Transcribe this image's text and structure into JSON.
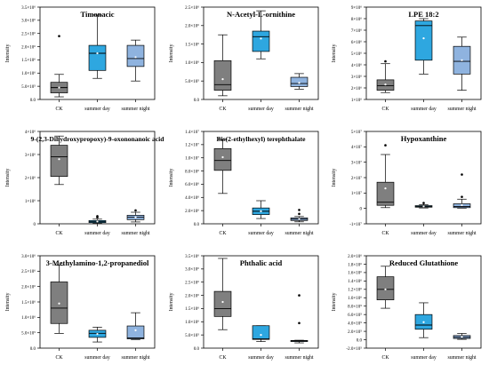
{
  "figure": {
    "ylabel": "Intensity",
    "box_colors": {
      "CK": "#7f7f7f",
      "summer day": "#2ea7e0",
      "summer night": "#8fb3df"
    },
    "mean_marker_color": "#ffffff",
    "outlier_color": "#000000"
  },
  "chart_data": [
    {
      "type": "box",
      "title": "Timonacic",
      "ylabel": "Intensity",
      "categories": [
        "CK",
        "summer day",
        "summer night"
      ],
      "ylim": [
        0,
        3500000
      ],
      "ticks": [
        0,
        500000,
        1000000,
        1500000,
        2000000,
        2500000,
        3000000,
        3500000
      ],
      "tick_labels": [
        "0.0",
        "5.0×10⁵",
        "1.0×10⁶",
        "1.5×10⁶",
        "2.0×10⁶",
        "2.5×10⁶",
        "3.0×10⁶",
        "3.5×10⁶"
      ],
      "boxes": [
        {
          "category": "CK",
          "min": 100000,
          "q1": 250000,
          "median": 450000,
          "q3": 650000,
          "max": 950000,
          "mean": 450000,
          "outliers": [
            2400000
          ]
        },
        {
          "category": "summer day",
          "min": 800000,
          "q1": 1100000,
          "median": 1750000,
          "q3": 2050000,
          "max": 3200000,
          "mean": 1750000,
          "outliers": []
        },
        {
          "category": "summer night",
          "min": 700000,
          "q1": 1250000,
          "median": 1550000,
          "q3": 2050000,
          "max": 2250000,
          "mean": 1600000,
          "outliers": []
        }
      ]
    },
    {
      "type": "box",
      "title": "N-Acetyl-L-ornithine",
      "ylabel": "Intensity",
      "categories": [
        "CK",
        "summer day",
        "summer night"
      ],
      "ylim": [
        0,
        2500000
      ],
      "ticks": [
        0,
        500000,
        1000000,
        1500000,
        2000000,
        2500000
      ],
      "tick_labels": [
        "0.0",
        "5.0×10⁵",
        "1.0×10⁶",
        "1.5×10⁶",
        "2.0×10⁶",
        "2.5×10⁶"
      ],
      "boxes": [
        {
          "category": "CK",
          "min": 100000,
          "q1": 250000,
          "median": 400000,
          "q3": 1050000,
          "max": 1750000,
          "mean": 550000,
          "outliers": []
        },
        {
          "category": "summer day",
          "min": 1100000,
          "q1": 1300000,
          "median": 1700000,
          "q3": 1850000,
          "max": 2400000,
          "mean": 1650000,
          "outliers": []
        },
        {
          "category": "summer night",
          "min": 280000,
          "q1": 350000,
          "median": 430000,
          "q3": 600000,
          "max": 700000,
          "mean": 450000,
          "outliers": []
        }
      ]
    },
    {
      "type": "box",
      "title": "LPE 18:2",
      "ylabel": "Intensity",
      "categories": [
        "CK",
        "summer day",
        "summer night"
      ],
      "ylim": [
        1000000,
        9000000
      ],
      "ticks": [
        1000000,
        2000000,
        3000000,
        4000000,
        5000000,
        6000000,
        7000000,
        8000000,
        9000000
      ],
      "tick_labels": [
        "1×10⁶",
        "2×10⁶",
        "3×10⁶",
        "4×10⁶",
        "5×10⁶",
        "6×10⁶",
        "7×10⁶",
        "8×10⁶",
        "9×10⁶"
      ],
      "boxes": [
        {
          "category": "CK",
          "min": 1600000,
          "q1": 1800000,
          "median": 2200000,
          "q3": 2700000,
          "max": 4100000,
          "mean": 2300000,
          "outliers": [
            4300000
          ]
        },
        {
          "category": "summer day",
          "min": 3200000,
          "q1": 4400000,
          "median": 7400000,
          "q3": 7800000,
          "max": 8000000,
          "mean": 6300000,
          "outliers": []
        },
        {
          "category": "summer night",
          "min": 1800000,
          "q1": 3200000,
          "median": 4300000,
          "q3": 5600000,
          "max": 6400000,
          "mean": 4400000,
          "outliers": []
        }
      ]
    },
    {
      "type": "box",
      "title": "9-(2,3-Dihydroxypropoxy)-9-oxononanoic acid",
      "ylabel": "Intensity",
      "categories": [
        "CK",
        "summer day",
        "summer night"
      ],
      "ylim": [
        0,
        4000000
      ],
      "ticks": [
        0,
        1000000,
        2000000,
        3000000,
        4000000
      ],
      "tick_labels": [
        "0",
        "1×10⁶",
        "2×10⁶",
        "3×10⁶",
        "4×10⁶"
      ],
      "boxes": [
        {
          "category": "CK",
          "min": 1700000,
          "q1": 2050000,
          "median": 2900000,
          "q3": 3400000,
          "max": 3800000,
          "mean": 2800000,
          "outliers": []
        },
        {
          "category": "summer day",
          "min": 20000,
          "q1": 50000,
          "median": 90000,
          "q3": 140000,
          "max": 200000,
          "mean": 100000,
          "outliers": [
            280000,
            330000
          ]
        },
        {
          "category": "summer night",
          "min": 80000,
          "q1": 180000,
          "median": 280000,
          "q3": 370000,
          "max": 500000,
          "mean": 280000,
          "outliers": [
            580000
          ]
        }
      ]
    },
    {
      "type": "box",
      "title": "Bis(2-ethylhexyl) terephthalate",
      "ylabel": "Intensity",
      "categories": [
        "CK",
        "summer day",
        "summer night"
      ],
      "ylim": [
        0,
        14000000
      ],
      "ticks": [
        0,
        2000000,
        4000000,
        6000000,
        8000000,
        10000000,
        12000000,
        14000000
      ],
      "tick_labels": [
        "0.0",
        "2.0×10⁶",
        "4.0×10⁶",
        "6.0×10⁶",
        "8.0×10⁶",
        "1.0×10⁷",
        "1.2×10⁷",
        "1.4×10⁷"
      ],
      "boxes": [
        {
          "category": "CK",
          "min": 4600000,
          "q1": 8100000,
          "median": 9600000,
          "q3": 11400000,
          "max": 12800000,
          "mean": 10100000,
          "outliers": []
        },
        {
          "category": "summer day",
          "min": 800000,
          "q1": 1400000,
          "median": 1900000,
          "q3": 2400000,
          "max": 3500000,
          "mean": 1900000,
          "outliers": []
        },
        {
          "category": "summer night",
          "min": 300000,
          "q1": 500000,
          "median": 700000,
          "q3": 900000,
          "max": 1100000,
          "mean": 750000,
          "outliers": [
            1500000,
            2100000
          ]
        }
      ]
    },
    {
      "type": "box",
      "title": "Hypoxanthine",
      "ylabel": "Intensity",
      "categories": [
        "CK",
        "summer day",
        "summer night"
      ],
      "ylim": [
        -10000000,
        50000000
      ],
      "ticks": [
        -10000000,
        0,
        10000000,
        20000000,
        30000000,
        40000000,
        50000000
      ],
      "tick_labels": [
        "-1×10⁷",
        "0",
        "1×10⁷",
        "2×10⁷",
        "3×10⁷",
        "4×10⁷",
        "5×10⁷"
      ],
      "boxes": [
        {
          "category": "CK",
          "min": 500000,
          "q1": 2000000,
          "median": 4000000,
          "q3": 17000000,
          "max": 35000000,
          "mean": 13000000,
          "outliers": [
            41000000
          ]
        },
        {
          "category": "summer day",
          "min": 300000,
          "q1": 800000,
          "median": 1200000,
          "q3": 1800000,
          "max": 2500000,
          "mean": 1300000,
          "outliers": [
            3500000
          ]
        },
        {
          "category": "summer night",
          "min": 200000,
          "q1": 500000,
          "median": 1200000,
          "q3": 3000000,
          "max": 6000000,
          "mean": 2200000,
          "outliers": [
            7500000,
            22000000
          ]
        }
      ]
    },
    {
      "type": "box",
      "title": "3-Methylamino-1,2-propanediol",
      "ylabel": "Intensity",
      "categories": [
        "CK",
        "summer day",
        "summer night"
      ],
      "ylim": [
        0,
        3000000
      ],
      "ticks": [
        0,
        500000,
        1000000,
        1500000,
        2000000,
        2500000,
        3000000
      ],
      "tick_labels": [
        "0.0",
        "5.0×10⁵",
        "1.0×10⁶",
        "1.5×10⁶",
        "2.0×10⁶",
        "2.5×10⁶",
        "3.0×10⁶"
      ],
      "boxes": [
        {
          "category": "CK",
          "min": 480000,
          "q1": 800000,
          "median": 1300000,
          "q3": 2150000,
          "max": 2700000,
          "mean": 1450000,
          "outliers": []
        },
        {
          "category": "summer day",
          "min": 200000,
          "q1": 350000,
          "median": 480000,
          "q3": 580000,
          "max": 680000,
          "mean": 460000,
          "outliers": []
        },
        {
          "category": "summer night",
          "min": 280000,
          "q1": 300000,
          "median": 330000,
          "q3": 720000,
          "max": 1150000,
          "mean": 580000,
          "outliers": []
        }
      ]
    },
    {
      "type": "box",
      "title": "Phthalic acid",
      "ylabel": "Intensity",
      "categories": [
        "CK",
        "summer day",
        "summer night"
      ],
      "ylim": [
        0,
        3500000
      ],
      "ticks": [
        0,
        500000,
        1000000,
        1500000,
        2000000,
        2500000,
        3000000,
        3500000
      ],
      "tick_labels": [
        "0.0",
        "5.0×10⁵",
        "1.0×10⁶",
        "1.5×10⁶",
        "2.0×10⁶",
        "2.5×10⁶",
        "3.0×10⁶",
        "3.5×10⁶"
      ],
      "boxes": [
        {
          "category": "CK",
          "min": 700000,
          "q1": 1200000,
          "median": 1500000,
          "q3": 2150000,
          "max": 3400000,
          "mean": 1750000,
          "outliers": []
        },
        {
          "category": "summer day",
          "min": 250000,
          "q1": 330000,
          "median": 350000,
          "q3": 850000,
          "max": 850000,
          "mean": 500000,
          "outliers": []
        },
        {
          "category": "summer night",
          "min": 200000,
          "q1": 250000,
          "median": 270000,
          "q3": 290000,
          "max": 300000,
          "mean": 550000,
          "outliers": [
            950000,
            2000000
          ]
        }
      ]
    },
    {
      "type": "box",
      "title": "Reduced Glutathione",
      "ylabel": "Intensity",
      "categories": [
        "CK",
        "summer day",
        "summer night"
      ],
      "ylim": [
        -200000,
        2000000
      ],
      "ticks": [
        -200000,
        0,
        200000,
        400000,
        600000,
        800000,
        1000000,
        1200000,
        1400000,
        1600000,
        1800000,
        2000000
      ],
      "tick_labels": [
        "-2.0×10⁵",
        "0.0",
        "2.0×10⁵",
        "4.0×10⁵",
        "6.0×10⁵",
        "8.0×10⁵",
        "1.0×10⁶",
        "1.2×10⁶",
        "1.4×10⁶",
        "1.6×10⁶",
        "1.8×10⁶",
        "2.0×10⁶"
      ],
      "boxes": [
        {
          "category": "CK",
          "min": 750000,
          "q1": 950000,
          "median": 1200000,
          "q3": 1500000,
          "max": 1750000,
          "mean": 1200000,
          "outliers": []
        },
        {
          "category": "summer day",
          "min": 50000,
          "q1": 250000,
          "median": 350000,
          "q3": 600000,
          "max": 880000,
          "mean": 420000,
          "outliers": []
        },
        {
          "category": "summer night",
          "min": 10000,
          "q1": 30000,
          "median": 60000,
          "q3": 100000,
          "max": 150000,
          "mean": 70000,
          "outliers": []
        }
      ]
    }
  ]
}
